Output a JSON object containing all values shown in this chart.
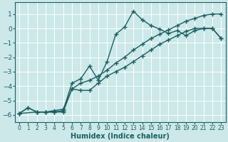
{
  "xlabel": "Humidex (Indice chaleur)",
  "xlim": [
    -0.5,
    23.5
  ],
  "ylim": [
    -6.5,
    1.8
  ],
  "xticks": [
    0,
    1,
    2,
    3,
    4,
    5,
    6,
    7,
    8,
    9,
    10,
    11,
    12,
    13,
    14,
    15,
    16,
    17,
    18,
    19,
    20,
    21,
    22,
    23
  ],
  "yticks": [
    -6,
    -5,
    -4,
    -3,
    -2,
    -1,
    0,
    1
  ],
  "bg_color": "#cce8e8",
  "grid_color": "#ffffff",
  "line_color": "#1a6060",
  "line1_x": [
    0,
    1,
    2,
    3,
    4,
    5,
    6,
    7,
    8,
    9,
    10,
    11,
    12,
    13,
    14,
    15,
    16,
    17,
    18,
    19,
    20,
    21,
    22,
    23
  ],
  "line1_y": [
    -5.9,
    -5.5,
    -5.8,
    -5.8,
    -5.8,
    -5.8,
    -4.2,
    -3.8,
    -3.6,
    -3.3,
    -2.9,
    -2.4,
    -2.0,
    -1.5,
    -1.1,
    -0.7,
    -0.4,
    -0.1,
    0.2,
    0.5,
    0.7,
    0.9,
    1.0,
    1.0
  ],
  "line2_x": [
    0,
    2,
    3,
    4,
    5,
    6,
    7,
    8,
    9,
    10,
    11,
    12,
    13,
    14,
    15,
    16,
    17,
    18,
    19,
    20,
    21,
    22,
    23
  ],
  "line2_y": [
    -5.9,
    -5.8,
    -5.8,
    -5.7,
    -5.6,
    -4.2,
    -4.3,
    -4.3,
    -3.8,
    -3.3,
    -3.0,
    -2.7,
    -2.3,
    -1.9,
    -1.5,
    -1.1,
    -0.8,
    -0.5,
    -0.2,
    0.0,
    0.0,
    0.0,
    -0.7
  ],
  "line3_x": [
    0,
    1,
    2,
    3,
    4,
    5,
    6,
    7,
    8,
    9,
    10,
    11,
    12,
    13,
    14,
    15,
    16,
    17,
    18,
    19,
    20,
    21,
    22,
    23
  ],
  "line3_y": [
    -5.9,
    -5.5,
    -5.8,
    -5.8,
    -5.8,
    -5.7,
    -3.8,
    -3.5,
    -2.6,
    -3.6,
    -2.3,
    -0.4,
    0.1,
    1.2,
    0.6,
    0.2,
    -0.05,
    -0.35,
    -0.15,
    -0.5,
    -0.15,
    0.0,
    0.0,
    -0.7
  ],
  "marker": "+",
  "markersize": 4,
  "linewidth": 1.0
}
